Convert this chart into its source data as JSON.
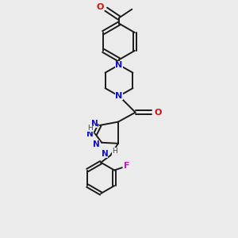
{
  "bg_color": "#ebebeb",
  "bond_color": "#1a1a1a",
  "n_color": "#1010cc",
  "o_color": "#cc1010",
  "f_color": "#cc10cc",
  "line_width": 1.4,
  "fig_w": 3.0,
  "fig_h": 3.0,
  "dpi": 100,
  "xlim": [
    -1.5,
    1.5
  ],
  "ylim": [
    -3.2,
    2.2
  ]
}
